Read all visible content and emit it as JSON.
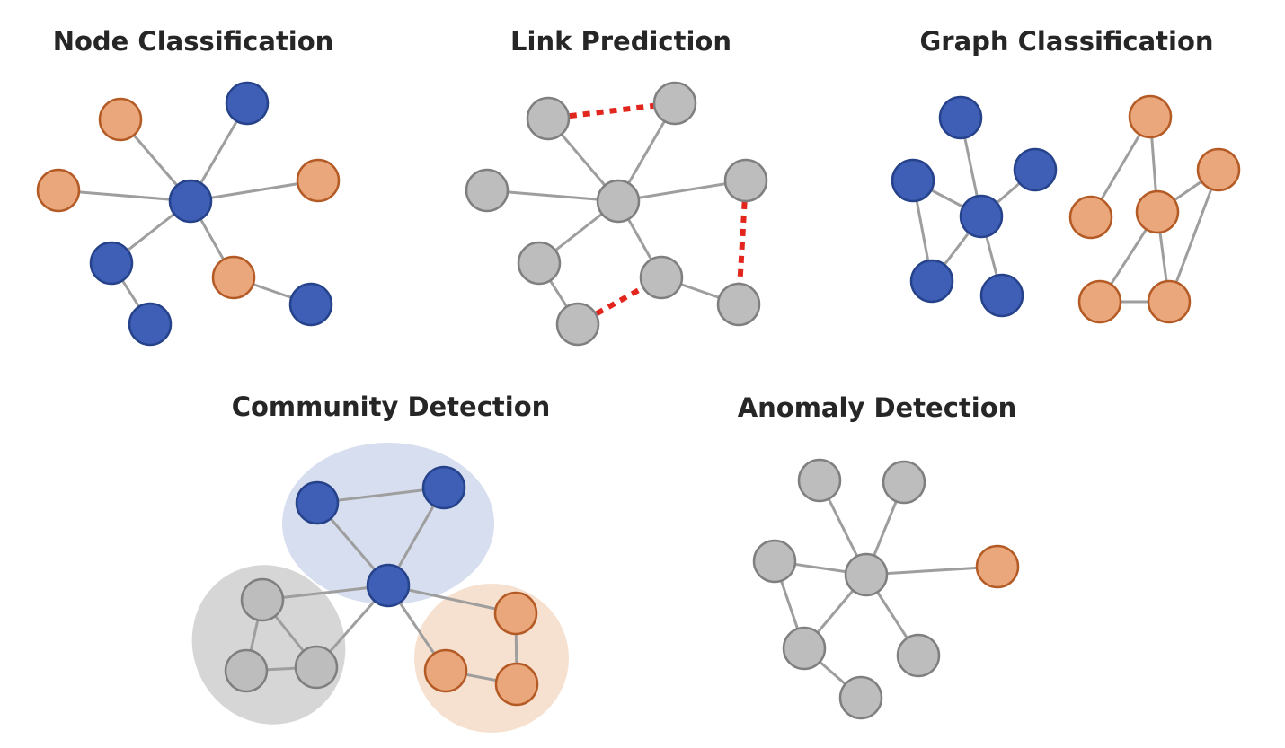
{
  "colors": {
    "blue_node": "#3f5fb7",
    "blue_stroke": "#25428a",
    "orange_node": "#eba77c",
    "orange_stroke": "#b45a25",
    "gray_node": "#bdbdbd",
    "gray_stroke": "#7f7f7f",
    "edge": "#9e9e9e",
    "predicted_edge": "#e2261e",
    "community_blue": "#d6deef",
    "community_gray": "#d6d6d6",
    "community_orange": "#f6e0cf",
    "title": "#262626"
  },
  "panels": [
    {
      "id": "node-classification",
      "title": "Node Classification",
      "nodes": [
        {
          "id": "center",
          "color": "blue"
        },
        {
          "id": "top-right",
          "color": "blue"
        },
        {
          "id": "top-left",
          "color": "orange"
        },
        {
          "id": "left",
          "color": "orange"
        },
        {
          "id": "right",
          "color": "orange"
        },
        {
          "id": "lower-left",
          "color": "blue"
        },
        {
          "id": "bottom",
          "color": "blue"
        },
        {
          "id": "lower-mid",
          "color": "orange"
        },
        {
          "id": "lower-right",
          "color": "blue"
        }
      ],
      "edges": [
        [
          "center",
          "top-right"
        ],
        [
          "center",
          "top-left"
        ],
        [
          "center",
          "left"
        ],
        [
          "center",
          "right"
        ],
        [
          "center",
          "lower-left"
        ],
        [
          "center",
          "lower-mid"
        ],
        [
          "lower-left",
          "bottom"
        ],
        [
          "lower-mid",
          "lower-right"
        ]
      ]
    },
    {
      "id": "link-prediction",
      "title": "Link Prediction",
      "nodes": [
        {
          "id": "center",
          "color": "gray"
        },
        {
          "id": "top-left",
          "color": "gray"
        },
        {
          "id": "top-right",
          "color": "gray"
        },
        {
          "id": "left",
          "color": "gray"
        },
        {
          "id": "right",
          "color": "gray"
        },
        {
          "id": "lower-left",
          "color": "gray"
        },
        {
          "id": "lower-mid",
          "color": "gray"
        },
        {
          "id": "bottom",
          "color": "gray"
        },
        {
          "id": "lower-right",
          "color": "gray"
        }
      ],
      "edges": [
        [
          "center",
          "top-left"
        ],
        [
          "center",
          "top-right"
        ],
        [
          "center",
          "left"
        ],
        [
          "center",
          "right"
        ],
        [
          "center",
          "lower-left"
        ],
        [
          "center",
          "lower-mid"
        ],
        [
          "lower-left",
          "bottom"
        ],
        [
          "lower-mid",
          "lower-right"
        ]
      ],
      "predicted_edges": [
        [
          "top-left",
          "top-right"
        ],
        [
          "right",
          "lower-right"
        ],
        [
          "bottom",
          "lower-mid"
        ]
      ]
    },
    {
      "id": "graph-classification",
      "title": "Graph Classification",
      "graphs": [
        {
          "label": "blue",
          "nodes": [
            {
              "id": "b-center",
              "color": "blue"
            },
            {
              "id": "b-top",
              "color": "blue"
            },
            {
              "id": "b-left",
              "color": "blue"
            },
            {
              "id": "b-right",
              "color": "blue"
            },
            {
              "id": "b-bottom-left",
              "color": "blue"
            },
            {
              "id": "b-bottom-right",
              "color": "blue"
            }
          ],
          "edges": [
            [
              "b-center",
              "b-top"
            ],
            [
              "b-center",
              "b-left"
            ],
            [
              "b-center",
              "b-right"
            ],
            [
              "b-center",
              "b-bottom-left"
            ],
            [
              "b-center",
              "b-bottom-right"
            ],
            [
              "b-left",
              "b-bottom-left"
            ]
          ]
        },
        {
          "label": "orange",
          "nodes": [
            {
              "id": "o-top",
              "color": "orange"
            },
            {
              "id": "o-left",
              "color": "orange"
            },
            {
              "id": "o-center",
              "color": "orange"
            },
            {
              "id": "o-right",
              "color": "orange"
            },
            {
              "id": "o-bottom-left",
              "color": "orange"
            },
            {
              "id": "o-bottom-right",
              "color": "orange"
            }
          ],
          "edges": [
            [
              "o-top",
              "o-left"
            ],
            [
              "o-top",
              "o-center"
            ],
            [
              "o-center",
              "o-right"
            ],
            [
              "o-center",
              "o-bottom-left"
            ],
            [
              "o-center",
              "o-bottom-right"
            ],
            [
              "o-bottom-left",
              "o-bottom-right"
            ],
            [
              "o-right",
              "o-bottom-right"
            ]
          ]
        }
      ]
    },
    {
      "id": "community-detection",
      "title": "Community Detection",
      "communities": [
        {
          "id": "blue-community",
          "color": "community_blue",
          "members": [
            "hub",
            "blue-top-left",
            "blue-top-right"
          ]
        },
        {
          "id": "gray-community",
          "color": "community_gray",
          "members": [
            "gray-top",
            "gray-bottom-left",
            "gray-bottom-right"
          ]
        },
        {
          "id": "orange-community",
          "color": "community_orange",
          "members": [
            "orange-top",
            "orange-bottom-left",
            "orange-bottom-right"
          ]
        }
      ],
      "nodes": [
        {
          "id": "hub",
          "color": "blue"
        },
        {
          "id": "blue-top-left",
          "color": "blue"
        },
        {
          "id": "blue-top-right",
          "color": "blue"
        },
        {
          "id": "gray-top",
          "color": "gray"
        },
        {
          "id": "gray-bottom-left",
          "color": "gray"
        },
        {
          "id": "gray-bottom-right",
          "color": "gray"
        },
        {
          "id": "orange-top",
          "color": "orange"
        },
        {
          "id": "orange-bottom-left",
          "color": "orange"
        },
        {
          "id": "orange-bottom-right",
          "color": "orange"
        }
      ],
      "edges": [
        [
          "hub",
          "blue-top-left"
        ],
        [
          "hub",
          "blue-top-right"
        ],
        [
          "blue-top-left",
          "blue-top-right"
        ],
        [
          "hub",
          "gray-top"
        ],
        [
          "hub",
          "gray-bottom-right"
        ],
        [
          "hub",
          "orange-top"
        ],
        [
          "hub",
          "orange-bottom-left"
        ],
        [
          "gray-top",
          "gray-bottom-left"
        ],
        [
          "gray-top",
          "gray-bottom-right"
        ],
        [
          "gray-bottom-left",
          "gray-bottom-right"
        ],
        [
          "orange-top",
          "orange-bottom-right"
        ],
        [
          "orange-bottom-left",
          "orange-bottom-right"
        ]
      ]
    },
    {
      "id": "anomaly-detection",
      "title": "Anomaly Detection",
      "nodes": [
        {
          "id": "center",
          "color": "gray"
        },
        {
          "id": "top-left",
          "color": "gray"
        },
        {
          "id": "top-right",
          "color": "gray"
        },
        {
          "id": "left",
          "color": "gray"
        },
        {
          "id": "anomaly",
          "color": "orange"
        },
        {
          "id": "lower-left",
          "color": "gray"
        },
        {
          "id": "lower-right",
          "color": "gray"
        },
        {
          "id": "bottom",
          "color": "gray"
        }
      ],
      "edges": [
        [
          "center",
          "top-left"
        ],
        [
          "center",
          "top-right"
        ],
        [
          "center",
          "left"
        ],
        [
          "center",
          "anomaly"
        ],
        [
          "center",
          "lower-left"
        ],
        [
          "center",
          "lower-right"
        ],
        [
          "left",
          "lower-left"
        ],
        [
          "lower-left",
          "bottom"
        ]
      ]
    }
  ]
}
